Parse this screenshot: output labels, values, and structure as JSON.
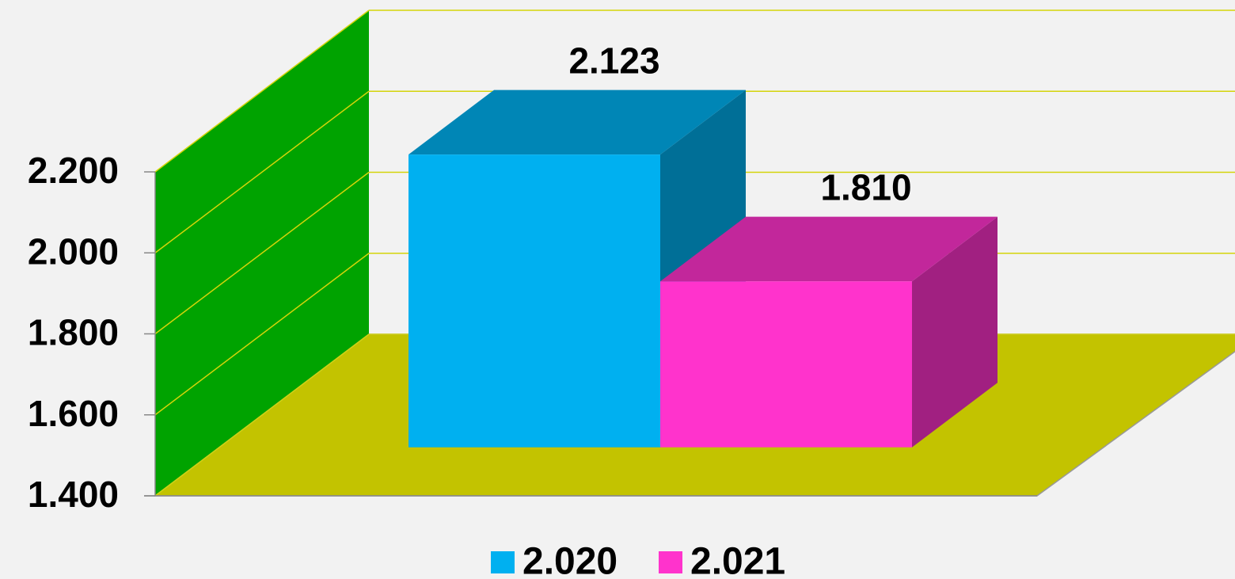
{
  "chart_data": {
    "type": "bar3d",
    "categories": [
      null
    ],
    "series": [
      {
        "name": "2.020",
        "color": "#00b0f0",
        "values": [
          2123
        ],
        "value_labels": [
          "2.123"
        ]
      },
      {
        "name": "2.021",
        "color": "#ff33cc",
        "values": [
          1810
        ],
        "value_labels": [
          "1.810"
        ]
      }
    ],
    "ylim": [
      1400,
      2200
    ],
    "yticks": [
      {
        "value": 1400,
        "label": "1.400"
      },
      {
        "value": 1600,
        "label": "1.600"
      },
      {
        "value": 1800,
        "label": "1.800"
      },
      {
        "value": 2000,
        "label": "2.000"
      },
      {
        "value": 2200,
        "label": "2.200"
      }
    ],
    "grid": true,
    "wall_color": "#00a300",
    "floor_color": "#c3c300",
    "grid_color": "#d4d40a",
    "legend": "bottom"
  }
}
